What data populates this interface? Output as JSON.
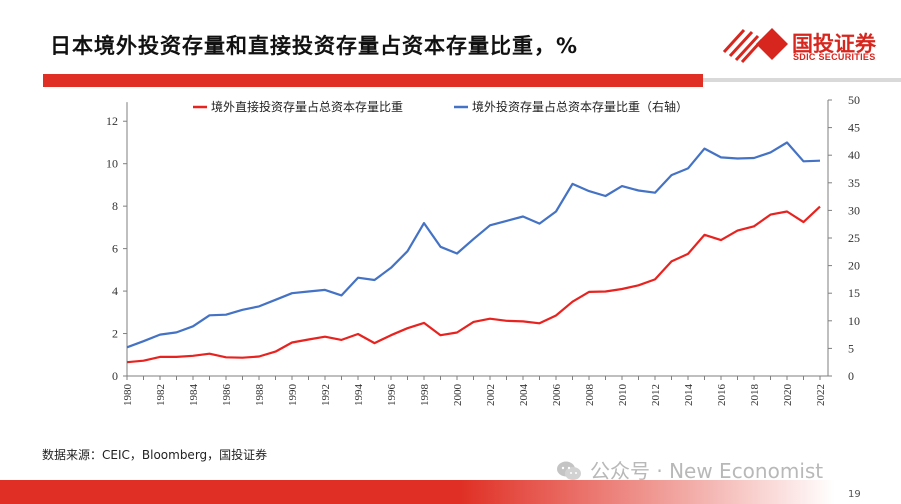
{
  "header": {
    "title": "日本境外投资存量和直接投资存量占资本存量比重，%",
    "brand_cn": "国投证券",
    "brand_en": "SDIC SECURITIES",
    "brand_color": "#d7261e"
  },
  "footer": {
    "source": "数据来源：CEIC，Bloomberg，国投证券",
    "watermark": "公众号 · New Economist",
    "watermark_icon": "wechat-icon",
    "page_number": "19"
  },
  "chart_data": {
    "type": "line",
    "title": "",
    "xlabel": "",
    "ylabel": "",
    "x": [
      1980,
      1981,
      1982,
      1983,
      1984,
      1985,
      1986,
      1987,
      1988,
      1989,
      1990,
      1991,
      1992,
      1993,
      1994,
      1995,
      1996,
      1997,
      1998,
      1999,
      2000,
      2001,
      2002,
      2003,
      2004,
      2005,
      2006,
      2007,
      2008,
      2009,
      2010,
      2011,
      2012,
      2013,
      2014,
      2015,
      2016,
      2017,
      2018,
      2019,
      2020,
      2021,
      2022
    ],
    "x_ticks": [
      "1980",
      "1982",
      "1984",
      "1986",
      "1988",
      "1990",
      "1992",
      "1994",
      "1996",
      "1998",
      "2000",
      "2002",
      "2004",
      "2006",
      "2008",
      "2010",
      "2012",
      "2014",
      "2016",
      "2018",
      "2020",
      "2022"
    ],
    "y_left": {
      "min": 0,
      "max": 13,
      "ticks": [
        0,
        2,
        4,
        6,
        8,
        10,
        12
      ]
    },
    "y_right": {
      "min": 0,
      "max": 50,
      "ticks": [
        0,
        5,
        10,
        15,
        20,
        25,
        30,
        35,
        40,
        45,
        50
      ]
    },
    "legend_position": "top",
    "grid": false,
    "series": [
      {
        "name": "境外直接投资存量占总资本存量比重",
        "axis": "left",
        "color": "#e8231f",
        "values": [
          0.65,
          0.72,
          0.9,
          0.9,
          0.95,
          1.05,
          0.88,
          0.86,
          0.92,
          1.15,
          1.58,
          1.72,
          1.85,
          1.7,
          1.98,
          1.55,
          1.92,
          2.25,
          2.5,
          1.92,
          2.05,
          2.55,
          2.7,
          2.6,
          2.57,
          2.48,
          2.85,
          3.5,
          3.96,
          3.98,
          4.1,
          4.27,
          4.55,
          5.4,
          5.75,
          6.65,
          6.4,
          6.85,
          7.05,
          7.6,
          7.75,
          7.25,
          7.98
        ]
      },
      {
        "name": "境外投资存量占总资本存量比重（右轴）",
        "axis": "right",
        "color": "#4472c4",
        "values": [
          5.2,
          6.3,
          7.5,
          7.9,
          9.0,
          11.0,
          11.1,
          12.0,
          12.6,
          13.8,
          15.0,
          15.3,
          15.6,
          14.6,
          17.8,
          17.4,
          19.6,
          22.6,
          27.7,
          23.4,
          22.2,
          24.8,
          27.3,
          28.1,
          28.9,
          27.6,
          29.8,
          34.8,
          33.5,
          32.6,
          34.4,
          33.6,
          33.2,
          36.4,
          37.6,
          41.2,
          39.6,
          39.4,
          39.5,
          40.5,
          42.3,
          38.9,
          39.0
        ]
      }
    ]
  }
}
